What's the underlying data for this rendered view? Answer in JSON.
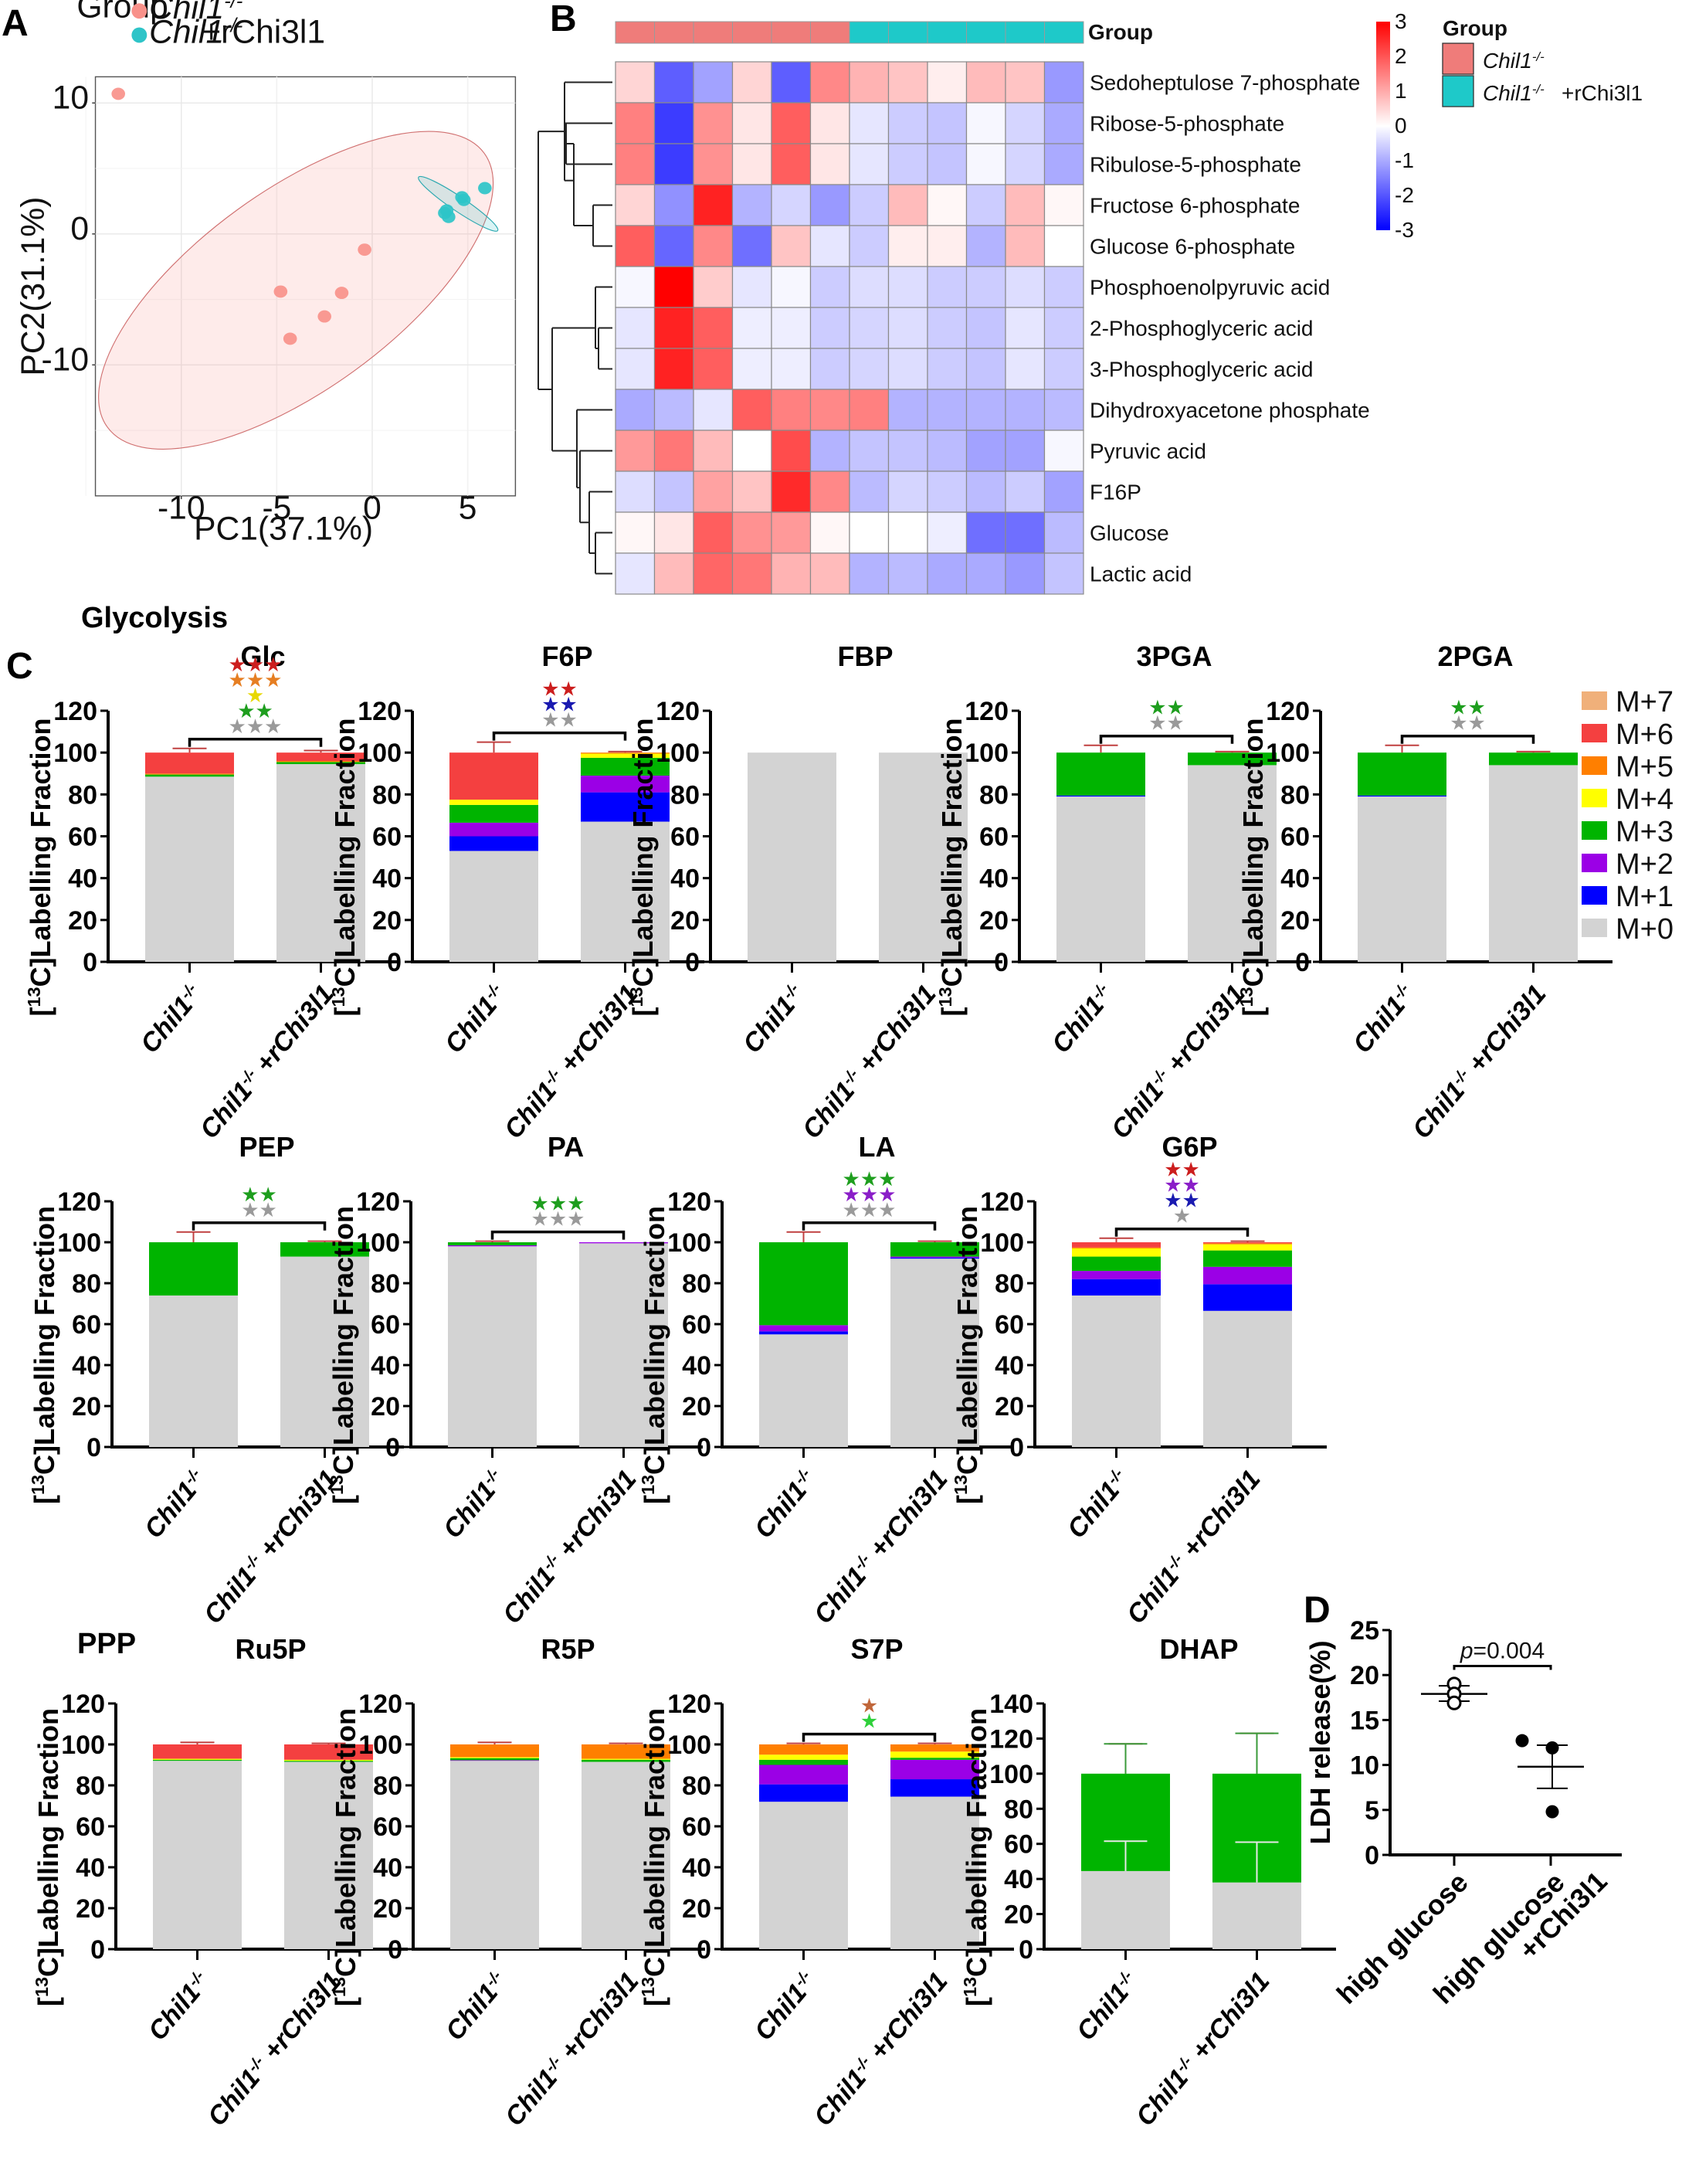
{
  "panels": {
    "A": "A",
    "B": "B",
    "C": "C",
    "D": "D"
  },
  "sections": {
    "glycolysis": "Glycolysis",
    "ppp": "PPP"
  },
  "chart_data": [
    {
      "id": "pca",
      "type": "scatter",
      "title": "",
      "xlabel": "PC1(37.1%)",
      "ylabel": "PC2(31.1%)",
      "xlim": [
        -14.5,
        7.5
      ],
      "ylim": [
        -20,
        12
      ],
      "xticks": [
        -10,
        -5,
        0,
        5
      ],
      "yticks": [
        -10,
        0,
        10
      ],
      "grid": true,
      "legend": {
        "title": "Group",
        "position": "top"
      },
      "series": [
        {
          "name": "Chil1-/-",
          "name_main": "Chil1",
          "name_sup": "-/-",
          "name_suffix": "",
          "color": "#F8918A",
          "points": [
            [
              -13.3,
              10.7
            ],
            [
              -0.4,
              -1.2
            ],
            [
              -4.8,
              -4.4
            ],
            [
              -1.6,
              -4.5
            ],
            [
              -2.5,
              -6.3
            ],
            [
              -4.3,
              -8.0
            ]
          ],
          "ellipse": {
            "cx": -4.0,
            "cy": -4.3,
            "rx": 12.2,
            "ry": 7.6,
            "angle_deg": -36
          }
        },
        {
          "name": "Chil1-/-+rChi3l1",
          "name_main": "Chil1",
          "name_sup": "-/-",
          "name_suffix": "+rChi3l1",
          "color": "#2EC4C8",
          "points": [
            [
              3.8,
              1.6
            ],
            [
              4.0,
              1.3
            ],
            [
              4.7,
              2.8
            ],
            [
              4.8,
              2.6
            ],
            [
              5.9,
              3.5
            ],
            [
              3.9,
              1.8
            ]
          ],
          "ellipse": {
            "cx": 4.5,
            "cy": 2.3,
            "rx": 2.5,
            "ry": 0.55,
            "angle_deg": 34
          }
        }
      ]
    },
    {
      "id": "heatmap",
      "type": "heatmap",
      "annotation_label": "Group",
      "legend_title": "Group",
      "legend": [
        {
          "main": "Chil1",
          "sup": "-/-",
          "suffix": "",
          "color": "#EF7C7A"
        },
        {
          "main": "Chil1",
          "sup": "-/-",
          "suffix": "+rChi3l1",
          "color": "#1EC9C9"
        }
      ],
      "colorbar": {
        "min": -3,
        "max": 3,
        "ticks": [
          3,
          2,
          1,
          0,
          -1,
          -2,
          -3
        ]
      },
      "column_groups": [
        0,
        0,
        0,
        0,
        0,
        0,
        1,
        1,
        1,
        1,
        1,
        1
      ],
      "rows": [
        "Sedoheptulose 7-phosphate",
        "Ribose-5-phosphate",
        "Ribulose-5-phosphate",
        "Fructose 6-phosphate",
        "Glucose 6-phosphate",
        "Phosphoenolpyruvic acid",
        "2-Phosphoglyceric acid",
        "3-Phosphoglyceric acid",
        "Dihydroxyacetone phosphate",
        "Pyruvic acid",
        "F16P",
        "Glucose",
        "Lactic acid"
      ],
      "values": [
        [
          0.5,
          -1.9,
          -1.1,
          0.5,
          -1.9,
          1.4,
          0.9,
          0.7,
          0.2,
          0.8,
          0.7,
          -1.2
        ],
        [
          1.5,
          -2.3,
          1.3,
          0.3,
          1.9,
          0.3,
          -0.3,
          -0.6,
          -0.7,
          -0.1,
          -0.5,
          -1.0
        ],
        [
          1.5,
          -2.3,
          1.3,
          0.3,
          1.9,
          0.3,
          -0.3,
          -0.6,
          -0.7,
          -0.1,
          -0.5,
          -1.0
        ],
        [
          0.5,
          -1.3,
          2.6,
          -0.9,
          -0.5,
          -1.2,
          -0.6,
          0.8,
          0.1,
          -0.6,
          0.8,
          0.1
        ],
        [
          1.9,
          -1.8,
          1.4,
          -1.7,
          0.7,
          -0.3,
          -0.6,
          0.2,
          0.2,
          -0.9,
          0.8,
          0.0
        ],
        [
          -0.1,
          3.0,
          0.6,
          -0.3,
          -0.1,
          -0.6,
          -0.4,
          -0.4,
          -0.6,
          -0.6,
          -0.4,
          -0.6
        ],
        [
          -0.3,
          2.6,
          1.9,
          -0.2,
          -0.2,
          -0.6,
          -0.5,
          -0.4,
          -0.6,
          -0.7,
          -0.3,
          -0.6
        ],
        [
          -0.3,
          2.6,
          1.9,
          -0.2,
          -0.2,
          -0.6,
          -0.5,
          -0.4,
          -0.6,
          -0.7,
          -0.3,
          -0.6
        ],
        [
          -1.0,
          -0.8,
          -0.3,
          1.9,
          1.5,
          1.4,
          1.5,
          -0.9,
          -0.9,
          -0.9,
          -0.9,
          -0.8
        ],
        [
          1.2,
          1.6,
          0.8,
          0.0,
          2.1,
          -0.9,
          -0.7,
          -0.7,
          -0.8,
          -1.1,
          -1.1,
          -0.1
        ],
        [
          -0.4,
          -0.7,
          1.1,
          0.7,
          2.5,
          1.4,
          -0.8,
          -0.5,
          -0.6,
          -0.8,
          -0.6,
          -1.1
        ],
        [
          0.1,
          0.3,
          1.9,
          1.3,
          1.2,
          0.1,
          0.0,
          0.0,
          -0.2,
          -1.7,
          -1.7,
          -0.8
        ],
        [
          -0.3,
          0.8,
          1.8,
          1.6,
          0.9,
          0.8,
          -0.9,
          -0.8,
          -1.0,
          -1.0,
          -1.2,
          -0.7
        ]
      ]
    },
    {
      "id": "isotopologue",
      "type": "bar",
      "stacked": true,
      "ylabel": "[13C]Labelling Fraction",
      "ylabel_pre": "[",
      "ylabel_sup": "13",
      "ylabel_post": "C]Labelling Fraction",
      "categories": [
        {
          "main": "Chil1",
          "sup": "-/-",
          "suffix": ""
        },
        {
          "main": "Chil1",
          "sup": "-/-",
          "suffix": " +rChi3l1"
        }
      ],
      "isotopologues": [
        "M+0",
        "M+1",
        "M+2",
        "M+3",
        "M+4",
        "M+5",
        "M+6",
        "M+7"
      ],
      "colors": {
        "M+0": "#D3D3D3",
        "M+1": "#0000FF",
        "M+2": "#9B00E6",
        "M+3": "#00B400",
        "M+4": "#FFFF00",
        "M+5": "#FF7F00",
        "M+6": "#F44040",
        "M+7": "#F0B07A"
      },
      "legend_order": [
        "M+7",
        "M+6",
        "M+5",
        "M+4",
        "M+3",
        "M+2",
        "M+1",
        "M+0"
      ],
      "legend_position": "right",
      "star_colors": {
        "red": "#CC1E1E",
        "orange": "#E67E22",
        "yellow": "#E8D800",
        "green": "#1E9E1E",
        "gray": "#9A9A9A",
        "blue": "#1A1AB0",
        "purple": "#8A1EC8",
        "brown": "#C0663A",
        "lightgreen": "#2ED03A"
      },
      "charts": [
        {
          "title": "Glc",
          "ymax": 120,
          "yticks": [
            0,
            20,
            40,
            60,
            80,
            100,
            120
          ],
          "bars": [
            {
              "M+0": 88.5,
              "M+3": 1.0,
              "M+5": 0.5,
              "M+6": 10.0,
              "err_top": 2
            },
            {
              "M+0": 94.5,
              "M+3": 1.0,
              "M+5": 0.5,
              "M+6": 4.0,
              "err_top": 1
            }
          ],
          "stars": [
            [
              "red",
              "***"
            ],
            [
              "orange",
              "***"
            ],
            [
              "yellow",
              "*"
            ],
            [
              "green",
              "**"
            ],
            [
              "gray",
              "***"
            ]
          ]
        },
        {
          "title": "F6P",
          "ymax": 120,
          "yticks": [
            0,
            20,
            40,
            60,
            80,
            100,
            120
          ],
          "bars": [
            {
              "M+0": 53,
              "M+1": 7,
              "M+2": 6.5,
              "M+3": 8.5,
              "M+4": 2.5,
              "M+6": 22.5,
              "err_top": 5
            },
            {
              "M+0": 67,
              "M+1": 14,
              "M+2": 8,
              "M+3": 8.5,
              "M+4": 2,
              "M+5": 0.5,
              "err_top": 0.5
            }
          ],
          "stars": [
            [
              "red",
              "**"
            ],
            [
              "blue",
              "**"
            ],
            [
              "gray",
              "**"
            ]
          ]
        },
        {
          "title": "FBP",
          "ymax": 120,
          "yticks": [
            0,
            20,
            40,
            60,
            80,
            100,
            120
          ],
          "bars": [
            {
              "M+0": 100
            },
            {
              "M+0": 100
            }
          ],
          "stars": []
        },
        {
          "title": "3PGA",
          "ymax": 120,
          "yticks": [
            0,
            20,
            40,
            60,
            80,
            100,
            120
          ],
          "bars": [
            {
              "M+0": 79,
              "M+1": 0.5,
              "M+3": 20.5,
              "err_top": 3.5
            },
            {
              "M+0": 94,
              "M+3": 6,
              "err_top": 0.5
            }
          ],
          "stars": [
            [
              "green",
              "**"
            ],
            [
              "gray",
              "**"
            ]
          ]
        },
        {
          "title": "2PGA",
          "ymax": 120,
          "yticks": [
            0,
            20,
            40,
            60,
            80,
            100,
            120
          ],
          "bars": [
            {
              "M+0": 79,
              "M+1": 0.5,
              "M+3": 20.5,
              "err_top": 3.5
            },
            {
              "M+0": 94,
              "M+3": 6,
              "err_top": 0.5
            }
          ],
          "stars": [
            [
              "green",
              "**"
            ],
            [
              "gray",
              "**"
            ]
          ]
        },
        {
          "title": "PEP",
          "ymax": 120,
          "yticks": [
            0,
            20,
            40,
            60,
            80,
            100,
            120
          ],
          "bars": [
            {
              "M+0": 74,
              "M+3": 26,
              "err_top": 5
            },
            {
              "M+0": 93,
              "M+3": 7,
              "err_top": 0.5
            }
          ],
          "stars": [
            [
              "green",
              "**"
            ],
            [
              "gray",
              "**"
            ]
          ]
        },
        {
          "title": "PA",
          "ymax": 120,
          "yticks": [
            0,
            20,
            40,
            60,
            80,
            100,
            120
          ],
          "bars": [
            {
              "M+0": 98,
              "M+2": 0.5,
              "M+3": 1.5,
              "err_top": 0.5
            },
            {
              "M+0": 99.5,
              "M+2": 0.5
            }
          ],
          "stars": [
            [
              "green",
              "***"
            ],
            [
              "gray",
              "***"
            ]
          ]
        },
        {
          "title": "LA",
          "ymax": 120,
          "yticks": [
            0,
            20,
            40,
            60,
            80,
            100,
            120
          ],
          "bars": [
            {
              "M+0": 55,
              "M+1": 1.5,
              "M+2": 3,
              "M+3": 40.5,
              "err_top": 5
            },
            {
              "M+0": 92,
              "M+1": 0.5,
              "M+2": 0.5,
              "M+3": 7,
              "err_top": 0.5
            }
          ],
          "stars": [
            [
              "green",
              "***"
            ],
            [
              "purple",
              "***"
            ],
            [
              "gray",
              "***"
            ]
          ]
        },
        {
          "title": "G6P",
          "ymax": 120,
          "yticks": [
            0,
            20,
            40,
            60,
            80,
            100,
            120
          ],
          "bars": [
            {
              "M+0": 74,
              "M+1": 8,
              "M+2": 4,
              "M+3": 7,
              "M+4": 4,
              "M+5": 0.5,
              "M+6": 2.5,
              "err_top": 2
            },
            {
              "M+0": 66.5,
              "M+1": 13,
              "M+2": 8.5,
              "M+3": 8,
              "M+4": 3,
              "M+5": 0.5,
              "M+6": 0.5,
              "err_top": 0.5
            }
          ],
          "stars": [
            [
              "red",
              "**"
            ],
            [
              "purple",
              "**"
            ],
            [
              "blue",
              "**"
            ],
            [
              "gray",
              "*"
            ]
          ]
        },
        {
          "title": "Ru5P",
          "ymax": 120,
          "yticks": [
            0,
            20,
            40,
            60,
            80,
            100,
            120
          ],
          "bars": [
            {
              "M+0": 92,
              "M+3": 0.5,
              "M+4": 0.5,
              "M+6": 7,
              "err_top": 1
            },
            {
              "M+0": 91.5,
              "M+3": 0.5,
              "M+4": 0.5,
              "M+6": 7.5,
              "err_top": 0.5
            }
          ],
          "stars": []
        },
        {
          "title": "R5P",
          "ymax": 120,
          "yticks": [
            0,
            20,
            40,
            60,
            80,
            100,
            120
          ],
          "bars": [
            {
              "M+0": 92,
              "M+2": 0.3,
              "M+3": 1,
              "M+4": 0.5,
              "M+5": 6.2,
              "err_top": 1
            },
            {
              "M+0": 91.5,
              "M+3": 1,
              "M+4": 0.5,
              "M+5": 7,
              "err_top": 0.5
            }
          ],
          "stars": []
        },
        {
          "title": "S7P",
          "ymax": 120,
          "yticks": [
            0,
            20,
            40,
            60,
            80,
            100,
            120
          ],
          "bars": [
            {
              "M+0": 72,
              "M+1": 8.5,
              "M+2": 9.5,
              "M+3": 2.5,
              "M+4": 2.5,
              "M+5": 5,
              "err_top": 0.5
            },
            {
              "M+0": 74.5,
              "M+1": 8.5,
              "M+2": 9.5,
              "M+3": 1,
              "M+4": 3,
              "M+5": 3.5,
              "err_top": 0.5
            }
          ],
          "stars": [
            [
              "brown",
              "*"
            ],
            [
              "lightgreen",
              "*"
            ]
          ]
        },
        {
          "title": "DHAP",
          "ymax": 140,
          "yticks": [
            0,
            20,
            40,
            60,
            80,
            100,
            120,
            140
          ],
          "bars": [
            {
              "M+0": 44.5,
              "M+3": 55.5,
              "err_top": 17,
              "err_inner": 17
            },
            {
              "M+0": 38,
              "M+3": 62,
              "err_top": 23,
              "err_inner": 23
            }
          ],
          "stars": []
        }
      ]
    },
    {
      "id": "ldh",
      "type": "scatter",
      "ylabel": "LDH release(%)",
      "ylim": [
        0,
        25
      ],
      "yticks": [
        0,
        5,
        10,
        15,
        20,
        25
      ],
      "categories": [
        "high glucose",
        "high glucose\n+rChi3l1"
      ],
      "categories_lines": [
        [
          "high glucose"
        ],
        [
          "high glucose",
          "+rChi3l1"
        ]
      ],
      "annotation": {
        "p_label": "p",
        "p_value": "=0.004"
      },
      "groups": [
        {
          "values": [
            19.0,
            17.9,
            16.9
          ],
          "mean": 17.9,
          "sem_low": 17.1,
          "sem_high": 18.8,
          "marker": "open"
        },
        {
          "values": [
            12.7,
            11.9,
            4.8
          ],
          "mean": 9.8,
          "sem_low": 7.4,
          "sem_high": 12.2,
          "marker": "filled"
        }
      ]
    }
  ]
}
